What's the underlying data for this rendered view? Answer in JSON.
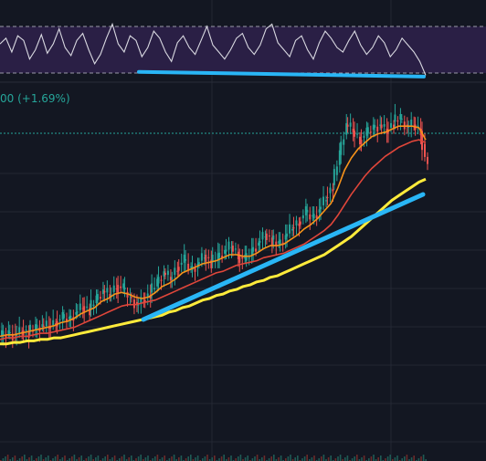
{
  "header": {
    "change_text": "00 (+1.69%)"
  },
  "colors": {
    "background": "#131722",
    "rsi_band": "#2a1f45",
    "rsi_line": "#d8d8e0",
    "grid": "#232733",
    "up": "#26a69a",
    "down": "#ef5350",
    "ma_fast": "#f7931a",
    "ma_mid": "#e0463a",
    "ma_slow": "#ffeb3b",
    "trendline": "#29b6f6",
    "price_line": "#26a69a"
  },
  "chart_data": [
    {
      "type": "line",
      "panel": "RSI",
      "levels": [
        70,
        30
      ],
      "series": [
        {
          "values": [
            55,
            60,
            48,
            62,
            58,
            42,
            50,
            63,
            47,
            55,
            68,
            52,
            45,
            58,
            64,
            50,
            38,
            46,
            60,
            72,
            55,
            48,
            62,
            58,
            44,
            52,
            66,
            60,
            48,
            40,
            56,
            62,
            52,
            46,
            58,
            70,
            54,
            48,
            42,
            50,
            60,
            64,
            52,
            46,
            54,
            68,
            72,
            56,
            50,
            44,
            58,
            62,
            50,
            42,
            56,
            66,
            60,
            52,
            48,
            58,
            66,
            54,
            46,
            52,
            62,
            56,
            44,
            50,
            60,
            54,
            48,
            40,
            28
          ]
        }
      ],
      "divergence_line": {
        "from_value": 31,
        "to_value": 27
      }
    },
    {
      "type": "line",
      "panel": "price",
      "series": [
        {
          "role": "candles_close",
          "values": [
            10,
            12,
            11,
            14,
            13,
            15,
            17,
            16,
            20,
            22,
            21,
            26,
            30,
            28,
            34,
            40,
            37,
            44,
            41,
            36,
            31,
            34,
            39,
            45,
            52,
            48,
            56,
            60,
            54,
            58,
            64,
            59,
            62,
            66,
            70,
            64,
            60,
            66,
            72,
            78,
            74,
            70,
            76,
            82,
            86,
            92,
            88,
            94,
            102,
            110,
            130,
            150,
            146,
            140,
            144,
            148,
            150,
            146,
            152,
            154,
            148,
            150,
            146,
            120
          ]
        },
        {
          "role": "ma_fast",
          "values": [
            10,
            11,
            11,
            12,
            13,
            14,
            15,
            16,
            17,
            19,
            20,
            22,
            25,
            27,
            29,
            33,
            35,
            38,
            39,
            38,
            36,
            35,
            36,
            39,
            43,
            45,
            48,
            52,
            54,
            56,
            58,
            59,
            60,
            62,
            64,
            64,
            63,
            63,
            65,
            68,
            70,
            70,
            71,
            74,
            77,
            81,
            84,
            88,
            93,
            98,
            108,
            120,
            128,
            134,
            138,
            142,
            144,
            145,
            147,
            149,
            149,
            149,
            148,
            140
          ]
        },
        {
          "role": "ma_mid",
          "values": [
            8,
            9,
            9,
            10,
            10,
            11,
            12,
            12,
            13,
            14,
            15,
            16,
            18,
            20,
            22,
            24,
            26,
            28,
            30,
            31,
            31,
            32,
            33,
            34,
            36,
            38,
            40,
            42,
            44,
            46,
            48,
            50,
            52,
            53,
            55,
            57,
            58,
            59,
            60,
            62,
            63,
            64,
            65,
            67,
            69,
            71,
            74,
            77,
            80,
            84,
            90,
            97,
            104,
            110,
            116,
            121,
            125,
            129,
            132,
            135,
            137,
            139,
            140,
            138
          ]
        },
        {
          "role": "ma_slow",
          "values": [
            5,
            5,
            6,
            6,
            7,
            7,
            8,
            8,
            9,
            9,
            10,
            11,
            12,
            13,
            14,
            15,
            16,
            17,
            18,
            19,
            20,
            21,
            22,
            23,
            24,
            26,
            27,
            29,
            30,
            32,
            34,
            35,
            37,
            38,
            40,
            41,
            43,
            44,
            46,
            47,
            49,
            50,
            52,
            54,
            56,
            58,
            60,
            62,
            64,
            67,
            70,
            73,
            76,
            80,
            84,
            88,
            92,
            96,
            100,
            103,
            106,
            109,
            112,
            114
          ]
        }
      ],
      "trendline": {
        "from_value": 20,
        "to_value": 113
      }
    }
  ]
}
